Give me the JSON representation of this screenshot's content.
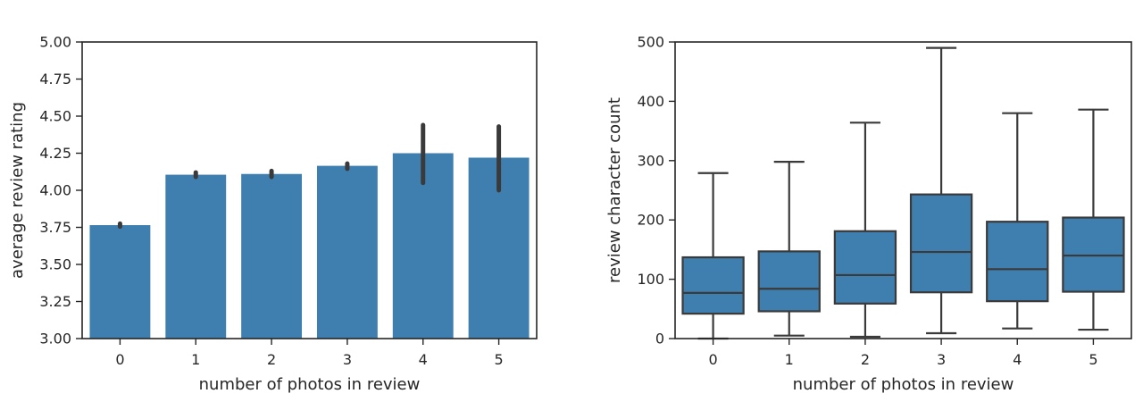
{
  "chart_data": [
    {
      "type": "bar",
      "xlabel": "number of photos in review",
      "ylabel": "average review rating",
      "categories": [
        "0",
        "1",
        "2",
        "3",
        "4",
        "5"
      ],
      "values": [
        3.765,
        4.105,
        4.11,
        4.165,
        4.25,
        4.22
      ],
      "error_bars": [
        {
          "low": 3.755,
          "high": 3.775
        },
        {
          "low": 4.09,
          "high": 4.12
        },
        {
          "low": 4.09,
          "high": 4.13
        },
        {
          "low": 4.145,
          "high": 4.18
        },
        {
          "low": 4.05,
          "high": 4.44
        },
        {
          "low": 4.0,
          "high": 4.43
        }
      ],
      "ylim": [
        3.0,
        5.0
      ],
      "yticks": [
        "3.00",
        "3.25",
        "3.50",
        "3.75",
        "4.00",
        "4.25",
        "4.50",
        "4.75",
        "5.00"
      ],
      "ytick_values": [
        3.0,
        3.25,
        3.5,
        3.75,
        4.0,
        4.25,
        4.5,
        4.75,
        5.0
      ],
      "grid": false,
      "bar_color": "#3f7fb0",
      "errorbar_color": "#3a3a3a"
    },
    {
      "type": "box",
      "xlabel": "number of photos in review",
      "ylabel": "review character count",
      "categories": [
        "0",
        "1",
        "2",
        "3",
        "4",
        "5"
      ],
      "boxes": [
        {
          "whisker_low": 0,
          "q1": 42,
          "median": 77,
          "q3": 137,
          "whisker_high": 279
        },
        {
          "whisker_low": 5,
          "q1": 46,
          "median": 84,
          "q3": 147,
          "whisker_high": 298
        },
        {
          "whisker_low": 3,
          "q1": 59,
          "median": 107,
          "q3": 181,
          "whisker_high": 364
        },
        {
          "whisker_low": 9,
          "q1": 78,
          "median": 146,
          "q3": 243,
          "whisker_high": 490
        },
        {
          "whisker_low": 17,
          "q1": 63,
          "median": 117,
          "q3": 197,
          "whisker_high": 380
        },
        {
          "whisker_low": 15,
          "q1": 79,
          "median": 140,
          "q3": 204,
          "whisker_high": 386
        }
      ],
      "ylim": [
        0,
        500
      ],
      "yticks": [
        "0",
        "100",
        "200",
        "300",
        "400",
        "500"
      ],
      "ytick_values": [
        0,
        100,
        200,
        300,
        400,
        500
      ],
      "grid": false,
      "box_color": "#3f7fb0",
      "line_color": "#3a3a3a"
    }
  ]
}
